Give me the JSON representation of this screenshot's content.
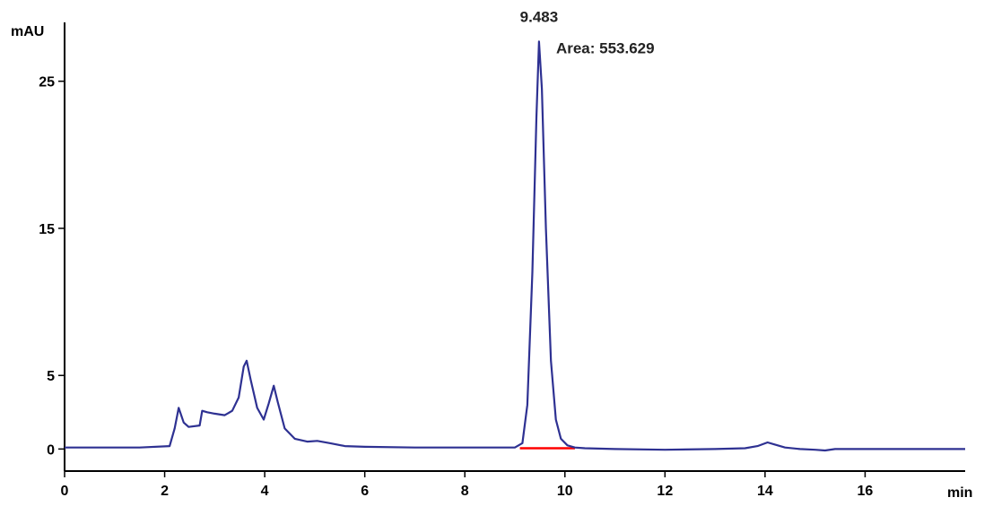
{
  "chart_data": {
    "type": "line",
    "title": "",
    "xlabel": "min",
    "ylabel": "mAU",
    "xlim": [
      0,
      18
    ],
    "ylim": [
      -1.5,
      29
    ],
    "x_ticks": [
      0,
      2,
      4,
      6,
      8,
      10,
      12,
      14,
      16
    ],
    "y_ticks": [
      0,
      5,
      15,
      25
    ],
    "grid": false,
    "colors": {
      "trace": "#2e3192",
      "integration_baseline": "#ff0000",
      "axis": "#000000"
    },
    "series": [
      {
        "x": [
          0,
          1.5,
          2.1,
          2.2,
          2.28,
          2.38,
          2.48,
          2.7,
          2.75,
          2.85,
          3.0,
          3.2,
          3.35,
          3.48,
          3.58,
          3.64,
          3.72,
          3.85,
          3.98,
          4.08,
          4.18,
          4.26,
          4.4,
          4.6,
          4.85,
          5.05,
          5.3,
          5.6,
          6.0,
          7.0,
          8.0,
          9.0,
          9.15,
          9.25,
          9.35,
          9.43,
          9.483,
          9.54,
          9.62,
          9.72,
          9.82,
          9.92,
          10.05,
          10.2,
          10.4,
          11.0,
          12.0,
          13.0,
          13.6,
          13.85,
          14.05,
          14.2,
          14.4,
          14.7,
          15.0,
          15.2,
          15.4,
          16.0,
          18.0
        ],
        "y": [
          0.1,
          0.1,
          0.2,
          1.4,
          2.8,
          1.8,
          1.5,
          1.6,
          2.6,
          2.5,
          2.4,
          2.3,
          2.6,
          3.5,
          5.6,
          6.0,
          4.7,
          2.8,
          2.0,
          3.1,
          4.3,
          3.2,
          1.4,
          0.7,
          0.5,
          0.55,
          0.4,
          0.2,
          0.15,
          0.1,
          0.1,
          0.1,
          0.4,
          3.0,
          12.0,
          22.5,
          27.7,
          24.5,
          15.0,
          6.0,
          2.0,
          0.7,
          0.25,
          0.1,
          0.05,
          0.0,
          -0.05,
          0.0,
          0.05,
          0.2,
          0.45,
          0.3,
          0.1,
          0.0,
          -0.05,
          -0.1,
          0.0,
          0.0,
          0.0
        ]
      }
    ],
    "integration_baseline": {
      "x_start": 9.1,
      "x_end": 10.2
    },
    "annotations": [
      {
        "text": "9.483",
        "x": 9.483,
        "y": 27.7,
        "kind": "retention-time"
      },
      {
        "text": "Area: 553.629",
        "x": 9.483,
        "y": 27.7,
        "kind": "peak-area"
      }
    ]
  }
}
